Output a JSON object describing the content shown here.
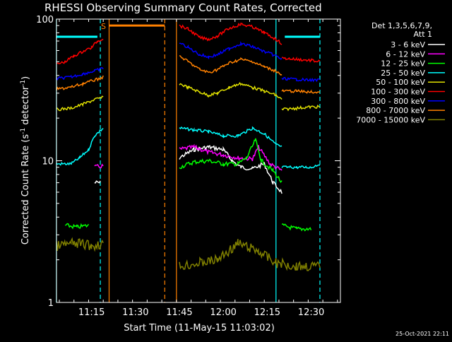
{
  "chart_data": {
    "type": "line",
    "title": "RHESSI Observing Summary Count Rates, Corrected",
    "xlabel": "Start Time (11-May-15 11:03:02)",
    "ylabel": "Corrected Count Rate (s⁻¹ detector⁻¹)",
    "ylabel_parts": {
      "main": "Corrected Count Rate (s",
      "sup1": "-1",
      "mid": " detector",
      "sup2": "-1",
      "end": ")"
    },
    "yscale": "log",
    "ylim": [
      1,
      100
    ],
    "xlim": [
      "11:03:02",
      "12:40:00"
    ],
    "x_ticks": [
      "11:15",
      "11:30",
      "11:45",
      "12:00",
      "12:15",
      "12:30"
    ],
    "y_ticks": [
      "1",
      "10",
      "100"
    ],
    "legend_header": [
      "Det 1,3,5,6,7,9,",
      "Att 1"
    ],
    "legend_position": "right, outside plot",
    "timestamp": "25-Oct-2021 22:11",
    "attenuator_marker": "S",
    "series": [
      {
        "name": "3 - 6 keV",
        "color": "#ffffff",
        "segments": [
          {
            "points": [
              [
                "11:16",
                7.0
              ],
              [
                "11:18",
                7.0
              ]
            ]
          },
          {
            "points": [
              [
                "11:45",
                10.5
              ],
              [
                "11:50",
                12.0
              ],
              [
                "11:55",
                12.5
              ],
              [
                "12:00",
                12.0
              ],
              [
                "12:03",
                10.0
              ],
              [
                "12:06",
                9.0
              ],
              [
                "12:10",
                8.8
              ],
              [
                "12:14",
                9.5
              ],
              [
                "12:17",
                7.0
              ],
              [
                "12:20",
                6.0
              ]
            ]
          }
        ]
      },
      {
        "name": "6 - 12 keV",
        "color": "#ff00ff",
        "segments": [
          {
            "points": [
              [
                "11:16",
                9.0
              ],
              [
                "11:19",
                9.2
              ]
            ]
          },
          {
            "points": [
              [
                "11:45",
                12.0
              ],
              [
                "11:50",
                12.5
              ],
              [
                "11:55",
                11.5
              ],
              [
                "12:00",
                11.0
              ],
              [
                "12:05",
                10.5
              ],
              [
                "12:10",
                10.3
              ],
              [
                "12:12",
                12.5
              ],
              [
                "12:16",
                9.5
              ],
              [
                "12:20",
                8.5
              ]
            ]
          }
        ]
      },
      {
        "name": "12 - 25 keV",
        "color": "#00ff00",
        "segments": [
          {
            "points": [
              [
                "11:06",
                3.5
              ],
              [
                "11:10",
                3.4
              ],
              [
                "11:14",
                3.5
              ]
            ]
          },
          {
            "points": [
              [
                "11:45",
                9.0
              ],
              [
                "11:50",
                9.8
              ],
              [
                "11:55",
                10.0
              ],
              [
                "12:00",
                9.5
              ],
              [
                "12:05",
                9.5
              ],
              [
                "12:08",
                10.5
              ],
              [
                "12:11",
                14.0
              ],
              [
                "12:13",
                10.0
              ],
              [
                "12:17",
                8.5
              ],
              [
                "12:20",
                7.0
              ]
            ]
          },
          {
            "points": [
              [
                "12:20",
                3.5
              ],
              [
                "12:25",
                3.3
              ],
              [
                "12:30",
                3.3
              ]
            ]
          }
        ]
      },
      {
        "name": "25 - 50 keV",
        "color": "#00ffff",
        "segments": [
          {
            "points": [
              [
                "11:03",
                9.5
              ],
              [
                "11:08",
                9.5
              ],
              [
                "11:11",
                10.5
              ],
              [
                "11:14",
                12.0
              ],
              [
                "11:16",
                15.0
              ],
              [
                "11:19",
                17.0
              ]
            ]
          },
          {
            "points": [
              [
                "11:45",
                17.0
              ],
              [
                "11:50",
                16.5
              ],
              [
                "11:55",
                16.0
              ],
              [
                "12:00",
                15.0
              ],
              [
                "12:05",
                15.0
              ],
              [
                "12:10",
                17.0
              ],
              [
                "12:14",
                15.5
              ],
              [
                "12:18",
                13.0
              ],
              [
                "12:20",
                12.5
              ]
            ]
          },
          {
            "points": [
              [
                "12:20",
                9.0
              ],
              [
                "12:25",
                9.0
              ],
              [
                "12:30",
                9.0
              ],
              [
                "12:33",
                9.5
              ]
            ]
          }
        ]
      },
      {
        "name": "50 - 100 keV",
        "color": "#e0e000",
        "segments": [
          {
            "points": [
              [
                "11:03",
                23.0
              ],
              [
                "11:08",
                23.5
              ],
              [
                "11:12",
                25.0
              ],
              [
                "11:16",
                27.0
              ],
              [
                "11:19",
                28.0
              ]
            ]
          },
          {
            "points": [
              [
                "11:45",
                35.0
              ],
              [
                "11:48",
                33.0
              ],
              [
                "11:52",
                30.5
              ],
              [
                "11:55",
                29.0
              ],
              [
                "11:58",
                30.0
              ],
              [
                "12:02",
                33.0
              ],
              [
                "12:06",
                35.0
              ],
              [
                "12:10",
                33.0
              ],
              [
                "12:14",
                31.0
              ],
              [
                "12:18",
                29.0
              ],
              [
                "12:20",
                27.0
              ]
            ]
          },
          {
            "points": [
              [
                "12:20",
                23.0
              ],
              [
                "12:25",
                23.5
              ],
              [
                "12:30",
                24.0
              ],
              [
                "12:33",
                24.0
              ]
            ]
          }
        ]
      },
      {
        "name": "100 - 300 keV",
        "color": "#ff0000",
        "segments": [
          {
            "points": [
              [
                "11:03",
                48.0
              ],
              [
                "11:06",
                50.0
              ],
              [
                "11:09",
                55.0
              ],
              [
                "11:12",
                59.0
              ],
              [
                "11:15",
                63.0
              ],
              [
                "11:17",
                70.0
              ],
              [
                "11:19",
                73.0
              ]
            ]
          },
          {
            "points": [
              [
                "11:45",
                90.0
              ],
              [
                "11:48",
                85.0
              ],
              [
                "11:52",
                74.0
              ],
              [
                "11:55",
                72.0
              ],
              [
                "11:58",
                76.0
              ],
              [
                "12:02",
                86.0
              ],
              [
                "12:06",
                92.0
              ],
              [
                "12:10",
                88.0
              ],
              [
                "12:14",
                80.0
              ],
              [
                "12:18",
                72.0
              ],
              [
                "12:20",
                67.0
              ]
            ]
          },
          {
            "points": [
              [
                "12:20",
                53.0
              ],
              [
                "12:25",
                52.0
              ],
              [
                "12:30",
                51.0
              ],
              [
                "12:33",
                50.0
              ]
            ]
          }
        ]
      },
      {
        "name": "300 - 800 keV",
        "color": "#0000ff",
        "segments": [
          {
            "points": [
              [
                "11:03",
                38.0
              ],
              [
                "11:08",
                39.0
              ],
              [
                "11:12",
                41.0
              ],
              [
                "11:16",
                43.0
              ],
              [
                "11:19",
                45.0
              ]
            ]
          },
          {
            "points": [
              [
                "11:45",
                68.0
              ],
              [
                "11:48",
                63.0
              ],
              [
                "11:52",
                56.0
              ],
              [
                "11:55",
                54.0
              ],
              [
                "11:58",
                56.0
              ],
              [
                "12:02",
                62.0
              ],
              [
                "12:06",
                67.0
              ],
              [
                "12:10",
                64.0
              ],
              [
                "12:14",
                59.0
              ],
              [
                "12:18",
                55.0
              ],
              [
                "12:20",
                52.0
              ]
            ]
          },
          {
            "points": [
              [
                "12:20",
                38.0
              ],
              [
                "12:25",
                37.5
              ],
              [
                "12:30",
                37.0
              ],
              [
                "12:33",
                37.0
              ]
            ]
          }
        ]
      },
      {
        "name": "800 - 7000 keV",
        "color": "#ff8000",
        "segments": [
          {
            "points": [
              [
                "11:03",
                32.0
              ],
              [
                "11:08",
                33.0
              ],
              [
                "11:12",
                35.0
              ],
              [
                "11:16",
                37.0
              ],
              [
                "11:19",
                39.0
              ]
            ]
          },
          {
            "points": [
              [
                "11:45",
                55.0
              ],
              [
                "11:48",
                50.0
              ],
              [
                "11:52",
                44.0
              ],
              [
                "11:55",
                42.0
              ],
              [
                "11:58",
                44.0
              ],
              [
                "12:02",
                49.0
              ],
              [
                "12:06",
                52.0
              ],
              [
                "12:10",
                50.0
              ],
              [
                "12:14",
                46.0
              ],
              [
                "12:18",
                43.0
              ],
              [
                "12:20",
                40.0
              ]
            ]
          },
          {
            "points": [
              [
                "12:20",
                31.0
              ],
              [
                "12:25",
                31.0
              ],
              [
                "12:30",
                30.5
              ],
              [
                "12:33",
                30.5
              ]
            ]
          }
        ]
      },
      {
        "name": "7000 - 15000 keV",
        "color": "#808000",
        "segments": [
          {
            "points": [
              [
                "11:03",
                2.5
              ],
              [
                "11:08",
                2.6
              ],
              [
                "11:12",
                2.6
              ],
              [
                "11:15",
                2.5
              ],
              [
                "11:19",
                2.6
              ]
            ]
          },
          {
            "points": [
              [
                "11:45",
                1.8
              ],
              [
                "11:52",
                1.9
              ],
              [
                "11:58",
                2.0
              ],
              [
                "12:05",
                2.6
              ],
              [
                "12:12",
                2.3
              ],
              [
                "12:18",
                1.9
              ],
              [
                "12:25",
                1.8
              ],
              [
                "12:33",
                1.8
              ]
            ]
          }
        ]
      }
    ],
    "flat_overlays": [
      {
        "color": "#00ffff",
        "y": 75,
        "segments": [
          [
            "11:03",
            "11:17"
          ],
          [
            "12:21",
            "12:33"
          ]
        ]
      },
      {
        "color": "#ff8000",
        "y": 90,
        "segments": [
          [
            "11:21",
            "11:40"
          ]
        ]
      }
    ],
    "vertical_markers": [
      {
        "time": "11:21",
        "color": "#ff8000",
        "style": "solid"
      },
      {
        "time": "11:40",
        "color": "#ff8000",
        "style": "dashed"
      },
      {
        "time": "11:44",
        "color": "#ff8000",
        "style": "solid"
      },
      {
        "time": "11:18",
        "color": "#00ffff",
        "style": "dashed"
      },
      {
        "time": "12:18",
        "color": "#00ffff",
        "style": "solid"
      },
      {
        "time": "12:33",
        "color": "#00ffff",
        "style": "dashed"
      },
      {
        "time": "11:03",
        "color": "#00ffff",
        "style": "solid"
      }
    ]
  }
}
